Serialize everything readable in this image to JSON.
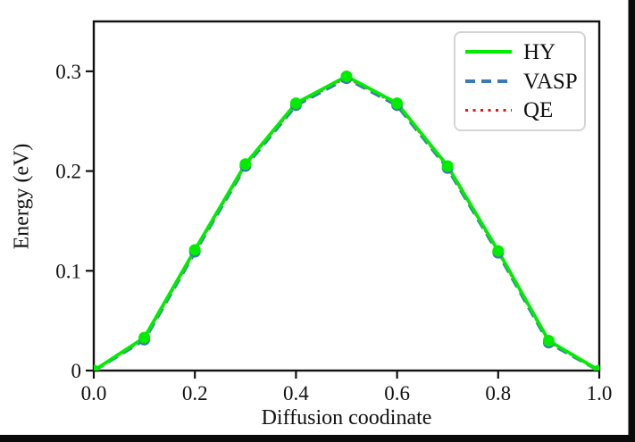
{
  "figure": {
    "xlabel": "Diffusion coodinate",
    "ylabel": "Energy (eV)"
  },
  "legend": {
    "items": [
      {
        "label": "HY",
        "color": "#00ed00",
        "style": "solid"
      },
      {
        "label": "VASP",
        "color": "#3b7ab2",
        "style": "dashed"
      },
      {
        "label": "QE",
        "color": "#ee1111",
        "style": "dotted"
      }
    ]
  },
  "chart_data": {
    "type": "line",
    "title": "",
    "xlabel": "Diffusion coodinate",
    "ylabel": "Energy (eV)",
    "x": [
      0.0,
      0.1,
      0.2,
      0.3,
      0.4,
      0.5,
      0.6,
      0.7,
      0.8,
      0.9,
      1.0
    ],
    "series": [
      {
        "name": "HY",
        "color": "#00ed00",
        "style": "solid",
        "marker": "circle",
        "values": [
          0.0,
          0.033,
          0.121,
          0.207,
          0.268,
          0.295,
          0.268,
          0.205,
          0.12,
          0.03,
          0.0
        ]
      },
      {
        "name": "VASP",
        "color": "#3b7ab2",
        "style": "dashed",
        "marker": "circle",
        "values": [
          0.0,
          0.031,
          0.119,
          0.205,
          0.266,
          0.293,
          0.266,
          0.203,
          0.118,
          0.028,
          0.0
        ]
      },
      {
        "name": "QE",
        "color": "#ee1111",
        "style": "dotted",
        "marker": "none",
        "values": [
          0.0,
          0.032,
          0.12,
          0.206,
          0.267,
          0.294,
          0.267,
          0.204,
          0.119,
          0.029,
          0.0
        ]
      }
    ],
    "xlim": [
      0.0,
      1.0
    ],
    "ylim": [
      0.0,
      0.35
    ],
    "xticks": {
      "values": [
        0.0,
        0.2,
        0.4,
        0.6,
        0.8,
        1.0
      ],
      "labels": [
        "0.0",
        "0.2",
        "0.4",
        "0.6",
        "0.8",
        "1.0"
      ]
    },
    "yticks": {
      "values": [
        0.0,
        0.1,
        0.2,
        0.3
      ],
      "labels": [
        "0",
        "0.1",
        "0.2",
        "0.3"
      ]
    },
    "grid": false,
    "legend_position": "upper right",
    "frame_color": "#111111",
    "window_border_color": "#0a0a0a"
  }
}
